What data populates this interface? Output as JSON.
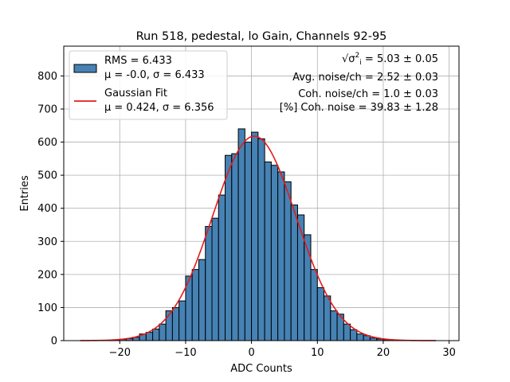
{
  "chart_data": {
    "type": "bar",
    "title": "Run 518, pedestal, lo Gain, Channels 92-95",
    "xlabel": "ADC Counts",
    "ylabel": "Entries",
    "xlim": [
      -28.5,
      31.5
    ],
    "ylim": [
      0,
      890
    ],
    "xticks": [
      -20,
      -10,
      0,
      10,
      20,
      30
    ],
    "yticks": [
      0,
      100,
      200,
      300,
      400,
      500,
      600,
      700,
      800
    ],
    "grid": true,
    "histogram": {
      "name": "RMS = 6.433",
      "stats_label": "μ = -0.0, σ = 6.433",
      "color": "#4682b4",
      "edge_color": "#000000",
      "bin_edges": [
        -21,
        -20,
        -19,
        -18,
        -17,
        -16,
        -15,
        -14,
        -13,
        -12,
        -11,
        -10,
        -9,
        -8,
        -7,
        -6,
        -5,
        -4,
        -3,
        -2,
        -1,
        0,
        1,
        2,
        3,
        4,
        5,
        6,
        7,
        8,
        9,
        10,
        11,
        12,
        13,
        14,
        15,
        16,
        17,
        18,
        19,
        20,
        21,
        22
      ],
      "counts": [
        2,
        4,
        6,
        10,
        20,
        25,
        35,
        50,
        90,
        100,
        120,
        195,
        215,
        245,
        345,
        370,
        440,
        560,
        565,
        640,
        600,
        630,
        610,
        540,
        530,
        510,
        480,
        410,
        380,
        320,
        215,
        160,
        135,
        90,
        80,
        50,
        33,
        20,
        15,
        8,
        5,
        3,
        2
      ]
    },
    "fit": {
      "name": "Gaussian Fit",
      "stats_label": "μ = 0.424, σ = 6.356",
      "color": "#e41a1c",
      "mu": 0.424,
      "sigma": 6.356,
      "amplitude": 618,
      "x_range": [
        -26,
        28
      ]
    },
    "legend_position": "top-left",
    "annotations": [
      {
        "prefix": "",
        "suffix": " = 5.03 ± 0.05"
      },
      {
        "text": "Avg. noise/ch = 2.52 ± 0.03"
      },
      {
        "text": "Coh. noise/ch = 1.0 ± 0.03"
      },
      {
        "text": "[%] Coh. noise = 39.83 ± 1.28"
      }
    ]
  }
}
